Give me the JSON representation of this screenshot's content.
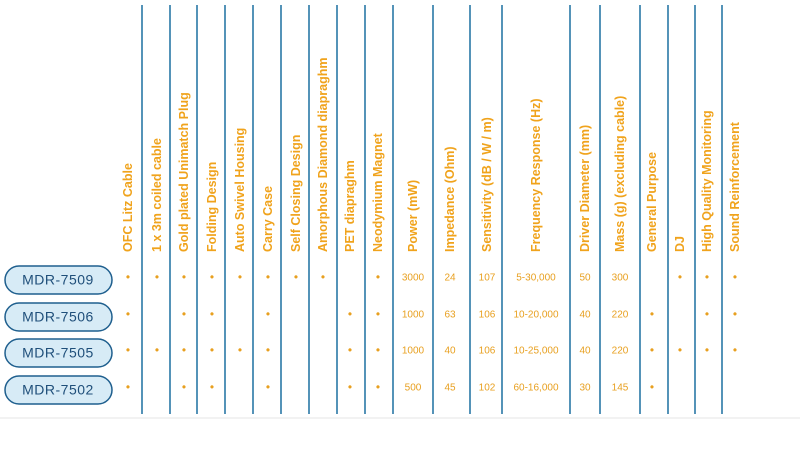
{
  "table": {
    "headers": [
      "OFC Litz Cable",
      "1 x 3m coiled cable",
      "Gold plated Unimatch Plug",
      "Folding Design",
      "Auto Swivel Housing",
      "Carry Case",
      "Self Closing Design",
      "Amorphous Diamond diapraghm",
      "PET diapraghm",
      "Neodymium Magnet",
      "Power (mW)",
      "Impedance (Ohm)",
      "Sensitivity (dB / W / m)",
      "Frequency Response (Hz)",
      "Driver Diameter (mm)",
      "Mass (g) (excluding cable)",
      "General Purpose",
      "DJ",
      "High Quality Monitoring",
      "Sound Reinforcement"
    ],
    "rows": [
      {
        "model": "MDR-7509",
        "cells": [
          "•",
          "•",
          "•",
          "•",
          "•",
          "•",
          "•",
          "•",
          null,
          "•",
          "3000",
          "24",
          "107",
          "5-30,000",
          "50",
          "300",
          null,
          "•",
          "•",
          "•"
        ]
      },
      {
        "model": "MDR-7506",
        "cells": [
          "•",
          null,
          "•",
          "•",
          null,
          "•",
          null,
          null,
          "•",
          "•",
          "1000",
          "63",
          "106",
          "10-20,000",
          "40",
          "220",
          "•",
          null,
          "•",
          "•"
        ]
      },
      {
        "model": "MDR-7505",
        "cells": [
          "•",
          "•",
          "•",
          "•",
          "•",
          "•",
          null,
          null,
          "•",
          "•",
          "1000",
          "40",
          "106",
          "10-25,000",
          "40",
          "220",
          "•",
          "•",
          "•",
          "•"
        ]
      },
      {
        "model": "MDR-7502",
        "cells": [
          "•",
          null,
          "•",
          "•",
          null,
          "•",
          null,
          null,
          "•",
          "•",
          "500",
          "45",
          "102",
          "60-16,000",
          "30",
          "145",
          "•",
          null,
          null,
          null
        ]
      }
    ]
  }
}
